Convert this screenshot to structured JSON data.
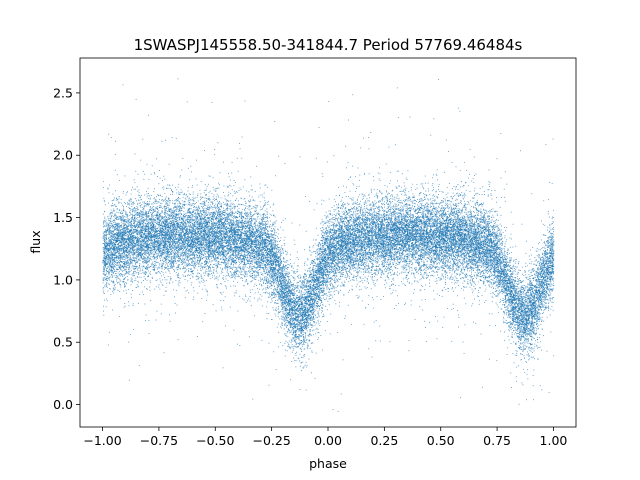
{
  "chart_data": {
    "type": "scatter",
    "title": "1SWASPJ145558.50-341844.7 Period 57769.46484s",
    "xlabel": "phase",
    "ylabel": "flux",
    "xlim": [
      -1.1,
      1.1
    ],
    "ylim": [
      -0.18,
      2.78
    ],
    "x_ticks": [
      -1.0,
      -0.75,
      -0.5,
      -0.25,
      0.0,
      0.25,
      0.5,
      0.75,
      1.0
    ],
    "x_tick_labels": [
      "−1.00",
      "−0.75",
      "−0.50",
      "−0.25",
      "0.00",
      "0.25",
      "0.50",
      "0.75",
      "1.00"
    ],
    "y_ticks": [
      0.0,
      0.5,
      1.0,
      1.5,
      2.0,
      2.5
    ],
    "y_tick_labels": [
      "0.0",
      "0.5",
      "1.0",
      "1.5",
      "2.0",
      "2.5"
    ],
    "grid": false,
    "legend": "none",
    "point_color": "#1f77b4",
    "series": [
      {
        "phase_range": [
          -1.0,
          1.0
        ],
        "baseline_flux": 1.32,
        "scatter_sigma": 0.2,
        "primary_minimum": {
          "phase": -0.13,
          "flux": 0.75
        },
        "secondary_minimum": {
          "phase": 0.87,
          "flux": 0.75
        },
        "approx_point_count": 30000
      }
    ]
  }
}
